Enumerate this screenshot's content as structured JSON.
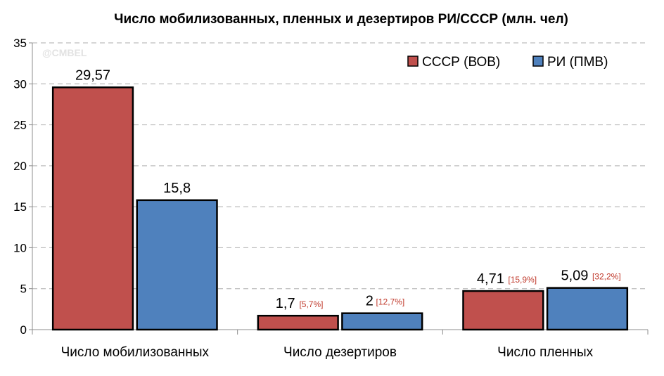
{
  "chart_data": {
    "type": "bar",
    "title": "Число мобилизованных,  пленных и дезертиров РИ/СССР (млн. чел)",
    "watermark": "@CMBEL",
    "categories": [
      "Число мобилизованных",
      "Число дезертиров",
      "Число пленных"
    ],
    "series": [
      {
        "name": "СССР (ВОВ)",
        "color": "#c0504d",
        "values": [
          29.57,
          1.7,
          4.71
        ],
        "value_labels": [
          "29,57",
          "1,7",
          "4,71"
        ],
        "percent_labels": [
          "",
          "[5,7%]",
          "[15,9%]"
        ]
      },
      {
        "name": "РИ (ПМВ)",
        "color": "#4f81bd",
        "values": [
          15.8,
          2,
          5.09
        ],
        "value_labels": [
          "15,8",
          "2",
          "5,09"
        ],
        "percent_labels": [
          "",
          "[12,7%]",
          "[32,2%]"
        ]
      }
    ],
    "yticks": [
      "0",
      "5",
      "10",
      "15",
      "20",
      "25",
      "30",
      "35"
    ],
    "ylim": [
      0,
      35
    ],
    "grid": true,
    "legend_position": "top-right"
  }
}
